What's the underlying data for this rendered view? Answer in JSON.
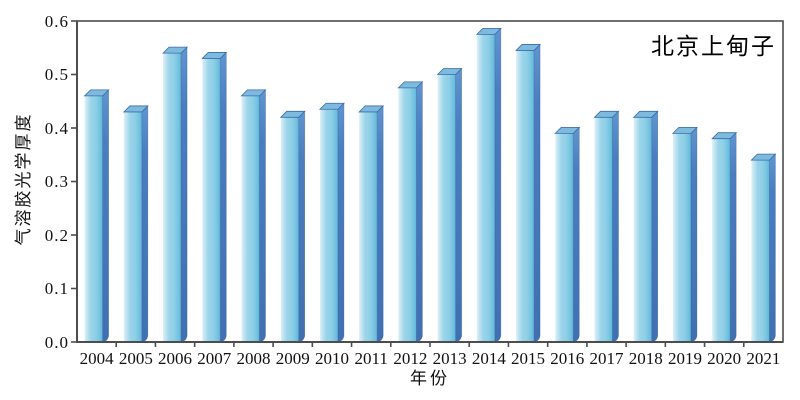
{
  "title": "北京上甸子",
  "chart_data": {
    "type": "bar",
    "title": "北京上甸子",
    "categories": [
      "2004",
      "2005",
      "2006",
      "2007",
      "2008",
      "2009",
      "2010",
      "2011",
      "2012",
      "2013",
      "2014",
      "2015",
      "2016",
      "2017",
      "2018",
      "2019",
      "2020",
      "2021"
    ],
    "values": [
      0.46,
      0.43,
      0.54,
      0.53,
      0.46,
      0.42,
      0.435,
      0.43,
      0.475,
      0.5,
      0.575,
      0.545,
      0.39,
      0.42,
      0.42,
      0.39,
      0.38,
      0.34
    ],
    "xlabel": "年份",
    "ylabel": "气溶胶光学厚度",
    "ylim": [
      0,
      0.6
    ],
    "y_ticks": [
      "0.0",
      "0.1",
      "0.2",
      "0.3",
      "0.4",
      "0.5",
      "0.6"
    ],
    "grid": false,
    "legend": "none",
    "bar_style": "3d-oblique",
    "colors": {
      "bar_front_light": "#ddf0f8",
      "bar_front": "#9ad4e9",
      "bar_front_dark": "#5fb6d7",
      "bar_side": "#4a7ec0",
      "bar_side_dark": "#3f70b2",
      "bar_top": "#7dbade",
      "bar_edge": "#3a6ba9",
      "axis": "#4d4d4d",
      "text": "#111111"
    }
  }
}
